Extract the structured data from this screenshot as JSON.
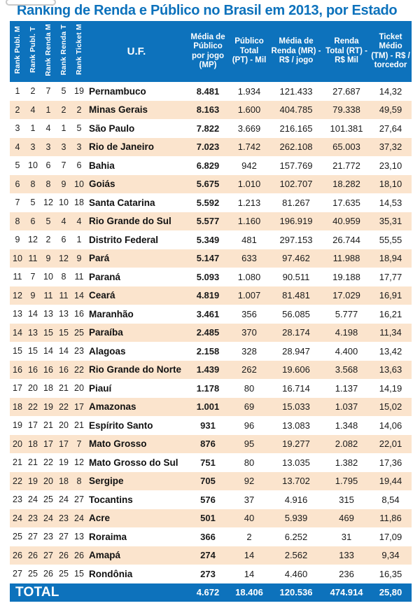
{
  "title": "Ranking de Renda e Público no Brasil em 2013, por Estado",
  "colors": {
    "header_blue": "#0d72bc",
    "row_alt_peach": "#fbe4cd",
    "title_blue": "#0d72bc"
  },
  "table": {
    "rank_headers": [
      "Rank Publ. M",
      "Rank Publ. T",
      "Rank Renda M",
      "Rank Renda T",
      "Rank Ticket M"
    ],
    "uf_header": "U.F.",
    "metric_headers": [
      "Média de Público por jogo (MP)",
      "Público Total (PT) - Mil",
      "Média de Renda (MR) - R$ / jogo",
      "Renda Total (RT) - R$ Mil",
      "Ticket Médio (TM) - R$ / torcedor"
    ],
    "rows": [
      {
        "ranks": [
          "1",
          "2",
          "7",
          "5",
          "19"
        ],
        "uf": "Pernambuco",
        "values": [
          "8.481",
          "1.934",
          "121.433",
          "27.687",
          "14,32"
        ]
      },
      {
        "ranks": [
          "2",
          "4",
          "1",
          "2",
          "2"
        ],
        "uf": "Minas Gerais",
        "values": [
          "8.163",
          "1.600",
          "404.785",
          "79.338",
          "49,59"
        ]
      },
      {
        "ranks": [
          "3",
          "1",
          "4",
          "1",
          "5"
        ],
        "uf": "São Paulo",
        "values": [
          "7.822",
          "3.669",
          "216.165",
          "101.381",
          "27,64"
        ]
      },
      {
        "ranks": [
          "4",
          "3",
          "3",
          "3",
          "3"
        ],
        "uf": "Rio de Janeiro",
        "values": [
          "7.023",
          "1.742",
          "262.108",
          "65.003",
          "37,32"
        ]
      },
      {
        "ranks": [
          "5",
          "10",
          "6",
          "7",
          "6"
        ],
        "uf": "Bahia",
        "values": [
          "6.829",
          "942",
          "157.769",
          "21.772",
          "23,10"
        ]
      },
      {
        "ranks": [
          "6",
          "8",
          "8",
          "9",
          "10"
        ],
        "uf": "Goiás",
        "values": [
          "5.675",
          "1.010",
          "102.707",
          "18.282",
          "18,10"
        ]
      },
      {
        "ranks": [
          "7",
          "5",
          "12",
          "10",
          "18"
        ],
        "uf": "Santa Catarina",
        "values": [
          "5.592",
          "1.213",
          "81.267",
          "17.635",
          "14,53"
        ]
      },
      {
        "ranks": [
          "8",
          "6",
          "5",
          "4",
          "4"
        ],
        "uf": "Rio Grande do Sul",
        "values": [
          "5.577",
          "1.160",
          "196.919",
          "40.959",
          "35,31"
        ]
      },
      {
        "ranks": [
          "9",
          "12",
          "2",
          "6",
          "1"
        ],
        "uf": "Distrito Federal",
        "values": [
          "5.349",
          "481",
          "297.153",
          "26.744",
          "55,55"
        ]
      },
      {
        "ranks": [
          "10",
          "11",
          "9",
          "12",
          "9"
        ],
        "uf": "Pará",
        "values": [
          "5.147",
          "633",
          "97.462",
          "11.988",
          "18,94"
        ]
      },
      {
        "ranks": [
          "11",
          "7",
          "10",
          "8",
          "11"
        ],
        "uf": "Paraná",
        "values": [
          "5.093",
          "1.080",
          "90.511",
          "19.188",
          "17,77"
        ]
      },
      {
        "ranks": [
          "12",
          "9",
          "11",
          "11",
          "14"
        ],
        "uf": "Ceará",
        "values": [
          "4.819",
          "1.007",
          "81.481",
          "17.029",
          "16,91"
        ]
      },
      {
        "ranks": [
          "13",
          "14",
          "13",
          "13",
          "16"
        ],
        "uf": "Maranhão",
        "values": [
          "3.461",
          "356",
          "56.085",
          "5.777",
          "16,21"
        ]
      },
      {
        "ranks": [
          "14",
          "13",
          "15",
          "15",
          "25"
        ],
        "uf": "Paraíba",
        "values": [
          "2.485",
          "370",
          "28.174",
          "4.198",
          "11,34"
        ]
      },
      {
        "ranks": [
          "15",
          "15",
          "14",
          "14",
          "23"
        ],
        "uf": "Alagoas",
        "values": [
          "2.158",
          "328",
          "28.947",
          "4.400",
          "13,42"
        ]
      },
      {
        "ranks": [
          "16",
          "16",
          "16",
          "16",
          "22"
        ],
        "uf": "Rio Grande do Norte",
        "values": [
          "1.439",
          "262",
          "19.606",
          "3.568",
          "13,63"
        ]
      },
      {
        "ranks": [
          "17",
          "20",
          "18",
          "21",
          "20"
        ],
        "uf": "Piauí",
        "values": [
          "1.178",
          "80",
          "16.714",
          "1.137",
          "14,19"
        ]
      },
      {
        "ranks": [
          "18",
          "22",
          "19",
          "22",
          "17"
        ],
        "uf": "Amazonas",
        "values": [
          "1.001",
          "69",
          "15.033",
          "1.037",
          "15,02"
        ]
      },
      {
        "ranks": [
          "19",
          "17",
          "21",
          "20",
          "21"
        ],
        "uf": "Espírito Santo",
        "values": [
          "931",
          "96",
          "13.083",
          "1.348",
          "14,06"
        ]
      },
      {
        "ranks": [
          "20",
          "18",
          "17",
          "17",
          "7"
        ],
        "uf": "Mato Grosso",
        "values": [
          "876",
          "95",
          "19.277",
          "2.082",
          "22,01"
        ]
      },
      {
        "ranks": [
          "21",
          "21",
          "22",
          "19",
          "12"
        ],
        "uf": "Mato Grosso do Sul",
        "values": [
          "751",
          "80",
          "13.035",
          "1.382",
          "17,36"
        ]
      },
      {
        "ranks": [
          "22",
          "19",
          "20",
          "18",
          "8"
        ],
        "uf": "Sergipe",
        "values": [
          "705",
          "92",
          "13.702",
          "1.795",
          "19,44"
        ]
      },
      {
        "ranks": [
          "23",
          "24",
          "25",
          "24",
          "27"
        ],
        "uf": "Tocantins",
        "values": [
          "576",
          "37",
          "4.916",
          "315",
          "8,54"
        ]
      },
      {
        "ranks": [
          "24",
          "23",
          "24",
          "23",
          "24"
        ],
        "uf": "Acre",
        "values": [
          "501",
          "40",
          "5.939",
          "469",
          "11,86"
        ]
      },
      {
        "ranks": [
          "25",
          "27",
          "23",
          "27",
          "13"
        ],
        "uf": "Roraima",
        "values": [
          "366",
          "2",
          "6.252",
          "31",
          "17,09"
        ]
      },
      {
        "ranks": [
          "26",
          "26",
          "27",
          "26",
          "26"
        ],
        "uf": "Amapá",
        "values": [
          "274",
          "14",
          "2.562",
          "133",
          "9,34"
        ]
      },
      {
        "ranks": [
          "27",
          "25",
          "26",
          "25",
          "15"
        ],
        "uf": "Rondônia",
        "values": [
          "273",
          "14",
          "4.460",
          "236",
          "16,35"
        ]
      }
    ],
    "total": {
      "label": "TOTAL",
      "values": [
        "4.672",
        "18.406",
        "120.536",
        "474.914",
        "25,80"
      ]
    }
  }
}
